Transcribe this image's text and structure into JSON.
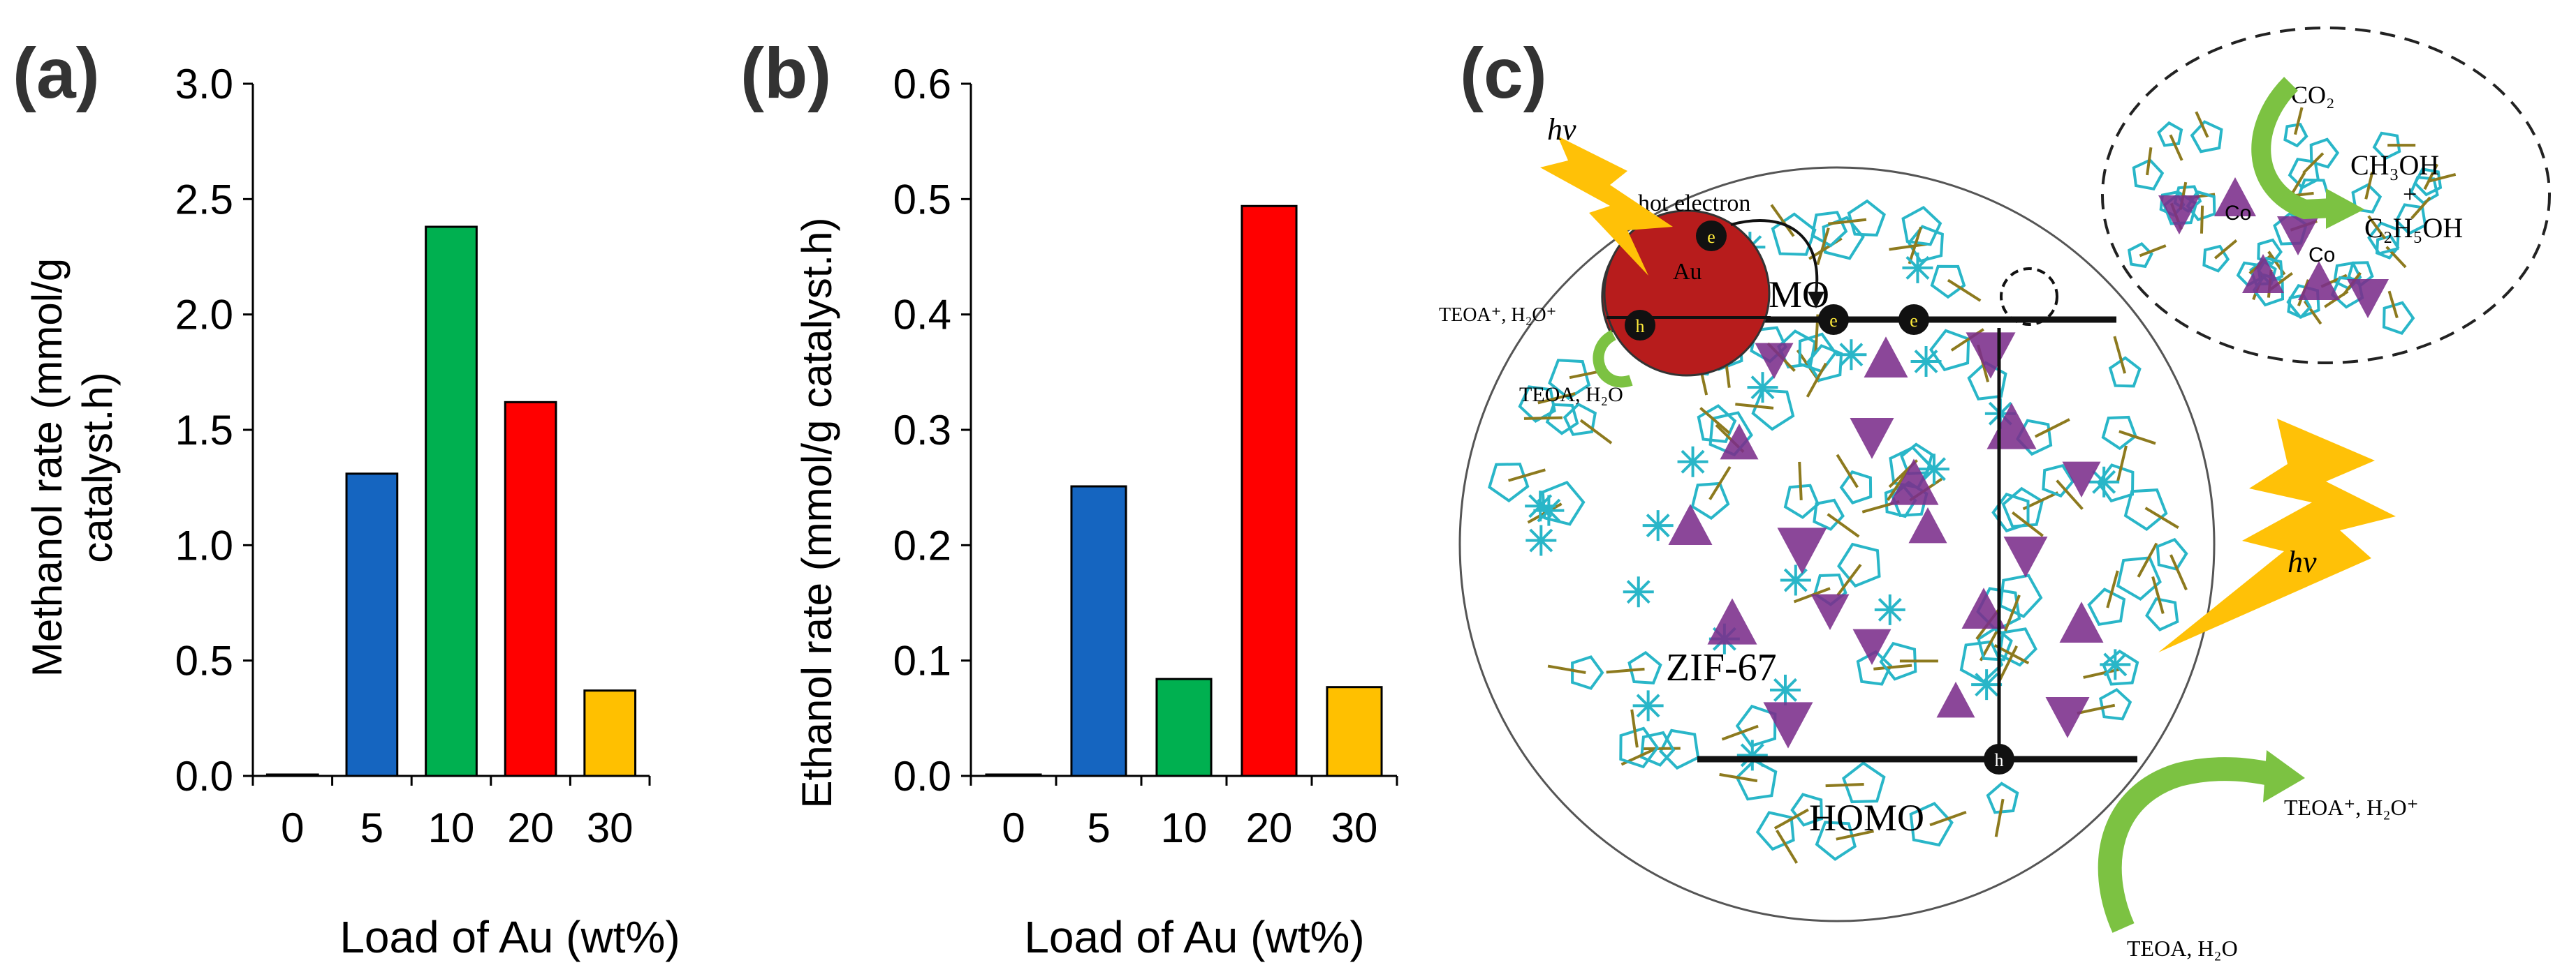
{
  "colors": {
    "blue": "#1565c0",
    "green": "#00b050",
    "red": "#ff0000",
    "orange": "#ffc000",
    "axis": "#000000",
    "purple": "#7b2d8b",
    "cyan": "#29b6c8",
    "olive": "#8d7a1e",
    "au": "#b71c1c",
    "arrow_green": "#7cc242",
    "bolt": "#ffc107"
  },
  "chart_data": [
    {
      "panel": "(a)",
      "type": "bar",
      "categories": [
        "0",
        "5",
        "10",
        "20",
        "30"
      ],
      "values": [
        0.0,
        1.31,
        2.38,
        1.62,
        0.37
      ],
      "bar_colors": [
        "#1565c0",
        "#1565c0",
        "#00b050",
        "#ff0000",
        "#ffc000"
      ],
      "xlabel": "Load of Au (wt%)",
      "ylabel_line1": "Methanol rate  (mmol/g",
      "ylabel_line2": "catalyst.h)",
      "ylim": [
        0,
        3.0
      ],
      "yticks": [
        "0.0",
        "0.5",
        "1.0",
        "1.5",
        "2.0",
        "2.5",
        "3.0"
      ],
      "grid": false
    },
    {
      "panel": "(b)",
      "type": "bar",
      "categories": [
        "0",
        "5",
        "10",
        "20",
        "30"
      ],
      "values": [
        0.0,
        0.251,
        0.084,
        0.494,
        0.077
      ],
      "bar_colors": [
        "#1565c0",
        "#1565c0",
        "#00b050",
        "#ff0000",
        "#ffc000"
      ],
      "xlabel": "Load of Au (wt%)",
      "ylabel": "Ethanol rate  (mmol/g catalyst.h)",
      "ylim": [
        0,
        0.6
      ],
      "yticks": [
        "0.0",
        "0.1",
        "0.2",
        "0.3",
        "0.4",
        "0.5",
        "0.6"
      ],
      "grid": false
    }
  ],
  "diagram": {
    "panel": "(c)",
    "hv": "hv",
    "hot_electron": "hot electron",
    "au": "Au",
    "electron": "e",
    "hole": "h",
    "lumo": "LUMO",
    "homo": "HOMO",
    "zif": "ZIF-67",
    "teoa_oxidized": "TEOA⁺, H₂O⁺",
    "teoa": "TEOA, H₂O",
    "co2": "CO₂",
    "ch3oh": "CH₃OH",
    "plus": "+",
    "c2h5oh": "C₂H₅OH",
    "co_label": "Co"
  }
}
